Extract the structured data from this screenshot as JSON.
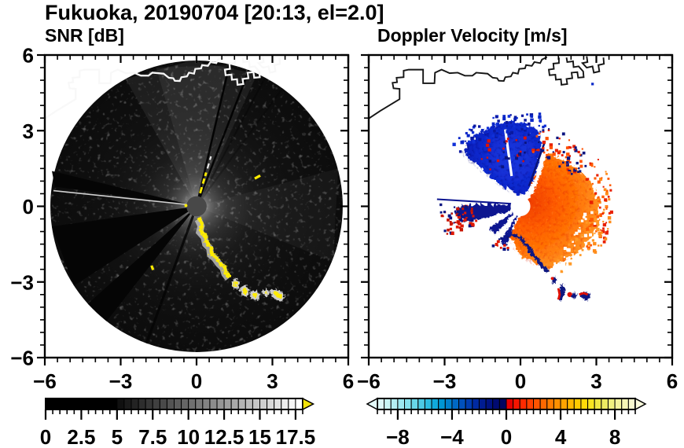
{
  "title": "Fukuoka, 20190704 [20:13, el=2.0]",
  "station": "Fukuoka",
  "date": "20190704",
  "time": "20:13",
  "elevation": "2.0",
  "panels": {
    "snr": {
      "title": "SNR [dB]"
    },
    "doppler": {
      "title": "Doppler Velocity [m/s]"
    }
  },
  "axes": {
    "min": -6,
    "max": 6,
    "major_step": 3,
    "minor_step": 0.5,
    "xtick_values": [
      -6,
      -3,
      0,
      3,
      6
    ],
    "xtick_labels": [
      "−6",
      "−3",
      "0",
      "3",
      "6"
    ],
    "ytick_values": [
      6,
      3,
      0,
      -3,
      -6
    ],
    "ytick_labels": [
      "6",
      "3",
      "0",
      "−3",
      "−6"
    ]
  },
  "colorbars": {
    "snr": {
      "min": 0,
      "max": 18,
      "solid_black_until": 5,
      "block_step": 0.5,
      "start_gray": "#101010",
      "end_gray": "#ffffff",
      "minor_tick_step": 0.5,
      "major_tick_step": 2.5,
      "tick_values": [
        0,
        2.5,
        5,
        7.5,
        10,
        12.5,
        15,
        17.5
      ],
      "tick_labels": [
        "0",
        "2.5",
        "5",
        "7.5",
        "10",
        "12.5",
        "15",
        "17.5"
      ],
      "overflow_arrow_color": "#f2e20a"
    },
    "doppler": {
      "min": -9.5,
      "max": 9.5,
      "block_step": 0.5,
      "minor_tick_step": 0.5,
      "tick_values": [
        -8,
        -4,
        0,
        4,
        8
      ],
      "tick_labels": [
        "−8",
        "−4",
        "0",
        "4",
        "8"
      ],
      "left_arrow_color": "#e2fafa",
      "right_arrow_color": "#fcfcdc",
      "block_colors": [
        "#dcf8f8",
        "#c8f4f4",
        "#b4eef2",
        "#9ce8f0",
        "#84e0ec",
        "#68d6e8",
        "#4ccae4",
        "#2cbce0",
        "#10aadc",
        "#0096d4",
        "#0080cc",
        "#0068c4",
        "#0050bc",
        "#003cb0",
        "#002aa2",
        "#001c92",
        "#001282",
        "#000a72",
        "#000560",
        "#e40000",
        "#f51500",
        "#ff2a00",
        "#ff4000",
        "#ff5400",
        "#ff6800",
        "#ff7c00",
        "#ff9000",
        "#ffa400",
        "#ffb800",
        "#ffca00",
        "#ffda08",
        "#f8e420",
        "#f0e843",
        "#eeec62",
        "#f0f080",
        "#f3f39c",
        "#f6f6b6",
        "#fafacf"
      ]
    }
  },
  "chart_data": [
    {
      "type": "heatmap",
      "title": "SNR [dB]",
      "xlabel": "",
      "ylabel": "",
      "xlim": [
        -6,
        6
      ],
      "ylim": [
        -6,
        6
      ],
      "x_ticks": [
        -6,
        -3,
        0,
        3,
        6
      ],
      "y_ticks": [
        6,
        3,
        0,
        -3,
        -6
      ],
      "grid": false,
      "colorbar": {
        "range": [
          0,
          18
        ],
        "tick_values": [
          0,
          2.5,
          5,
          7.5,
          10,
          12.5,
          15,
          17.5
        ],
        "style": "discrete grayscale, black below ~5 dB ramping to white at ~18 dB, yellow overflow arrow"
      },
      "scan": {
        "shape": "full-circle PPI",
        "scan_radius": 5.8,
        "center": [
          0,
          0
        ],
        "features": [
          {
            "name": "near-range bright returns",
            "desc": "gray glow around radar (~8-14 dB) fading with range; brightest toward N and E"
          },
          {
            "name": "center blind disk",
            "radius": 0.4,
            "value_dB": "~5"
          },
          {
            "name": "beam blockage shadows",
            "desc": "black wedges toward W (az 278-284), WSW-SW (az 237-262), SSW (az 218-228); thin shadow rays toward NNE (az 13 and 21) and SSW (az 200)"
          },
          {
            "name": "hard target streak",
            "desc": "jagged saturated (>18 dB, yellow) echo line from (0.1,-0.5) to (3.4,-3.8) toward SSE, with white-gray halo"
          },
          {
            "name": "coastline overlay",
            "color": "white",
            "desc": "coast runs along top of scan between y=3.5 and y=5.9 with port structures near x=1.3-3.3"
          }
        ]
      }
    },
    {
      "type": "heatmap",
      "title": "Doppler Velocity [m/s]",
      "xlabel": "",
      "ylabel": "",
      "xlim": [
        -6,
        6
      ],
      "ylim": [
        -6,
        6
      ],
      "x_ticks": [
        -6,
        -3,
        0,
        3,
        6
      ],
      "y_ticks": [
        6,
        3,
        0,
        -3,
        -6
      ],
      "grid": false,
      "colorbar": {
        "range": [
          -9.5,
          9.5
        ],
        "tick_values": [
          -8,
          -4,
          0,
          4,
          8
        ],
        "style": "discrete: pale-cyan to cyan to blue to navy for negative; red to orange to yellow to pale-yellow for positive; overflow arrows both ends"
      },
      "scan": {
        "features": [
          {
            "name": "negative (toward radar) fan",
            "desc": "blue/navy, v ~ -3 to -8 m/s, azimuth -50 to +10 deg, range 0.4-3.3, speckled edges"
          },
          {
            "name": "positive (away) fan",
            "desc": "red-orange, v ~ +1 to +5 m/s, azimuth 15-205 deg, range 0.4-3.2; lighter (+5 to +7) toward outer SE edge; navy fold-over rim on SW edge"
          },
          {
            "name": "west wedge",
            "desc": "navy (~-8 m/s) wedge az 250-275 deg to range ~2.6 with aliased red specks at far end; thin navy ray to (-3.3, 0.3)"
          },
          {
            "name": "ground clutter blobs",
            "desc": "navy/red patches near (1.2,-3.0) to (2.7,-3.8), matching SNR terrain streak"
          },
          {
            "name": "no data",
            "desc": "white background outside echoes; white center disk r ~ 0.35"
          },
          {
            "name": "coastline overlay",
            "color": "black"
          }
        ]
      }
    }
  ]
}
